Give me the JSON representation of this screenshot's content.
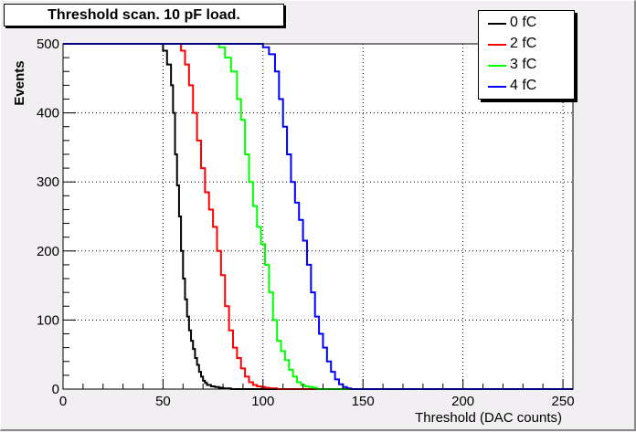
{
  "chart_data": {
    "type": "line",
    "title": "Threshold scan. 10 pF load.",
    "xlabel": "Threshold (DAC counts)",
    "ylabel": "Events",
    "xlim": [
      0,
      255
    ],
    "ylim": [
      0,
      500
    ],
    "x_ticks": [
      "0",
      "50",
      "100",
      "150",
      "200",
      "250"
    ],
    "y_ticks": [
      "0",
      "100",
      "200",
      "300",
      "400",
      "500"
    ],
    "grid": true,
    "legend_position": "top-right",
    "series": [
      {
        "name": "0 fC",
        "color": "#000000",
        "x": [
          0,
          47,
          50,
          52,
          54,
          55,
          56,
          57,
          58,
          59,
          60,
          61,
          62,
          63,
          64,
          65,
          66,
          67,
          68,
          69,
          70,
          71,
          72,
          74,
          76,
          78,
          80,
          84,
          90,
          255
        ],
        "y": [
          500,
          500,
          490,
          470,
          440,
          400,
          340,
          295,
          250,
          200,
          160,
          130,
          105,
          85,
          70,
          58,
          45,
          35,
          25,
          18,
          12,
          9,
          6,
          4,
          3,
          2,
          1,
          0,
          0,
          0
        ]
      },
      {
        "name": "2 fC",
        "color": "#ff0000",
        "x": [
          0,
          57,
          59,
          61,
          63,
          65,
          67,
          69,
          71,
          73,
          75,
          77,
          79,
          81,
          83,
          85,
          87,
          89,
          91,
          93,
          95,
          97,
          99,
          101,
          103,
          107,
          255
        ],
        "y": [
          500,
          500,
          490,
          470,
          440,
          400,
          360,
          320,
          285,
          260,
          235,
          200,
          165,
          120,
          85,
          60,
          45,
          30,
          18,
          10,
          6,
          4,
          3,
          2,
          1,
          0,
          0
        ]
      },
      {
        "name": "3 fC",
        "color": "#00ff00",
        "x": [
          0,
          74,
          78,
          81,
          84,
          87,
          89,
          91,
          93,
          95,
          97,
          99,
          101,
          103,
          105,
          107,
          109,
          111,
          113,
          115,
          117,
          119,
          121,
          123,
          125,
          127,
          255
        ],
        "y": [
          500,
          500,
          495,
          480,
          460,
          420,
          390,
          340,
          300,
          265,
          235,
          210,
          180,
          140,
          100,
          70,
          55,
          42,
          28,
          18,
          10,
          6,
          4,
          3,
          2,
          0,
          0
        ]
      },
      {
        "name": "4 fC",
        "color": "#0000ff",
        "x": [
          0,
          95,
          100,
          103,
          106,
          108,
          110,
          112,
          114,
          116,
          118,
          120,
          122,
          124,
          126,
          128,
          130,
          132,
          134,
          136,
          138,
          140,
          142,
          144,
          255
        ],
        "y": [
          500,
          500,
          495,
          485,
          460,
          420,
          380,
          340,
          300,
          270,
          245,
          215,
          180,
          140,
          105,
          80,
          60,
          40,
          25,
          14,
          7,
          3,
          1,
          0,
          0
        ]
      }
    ]
  }
}
